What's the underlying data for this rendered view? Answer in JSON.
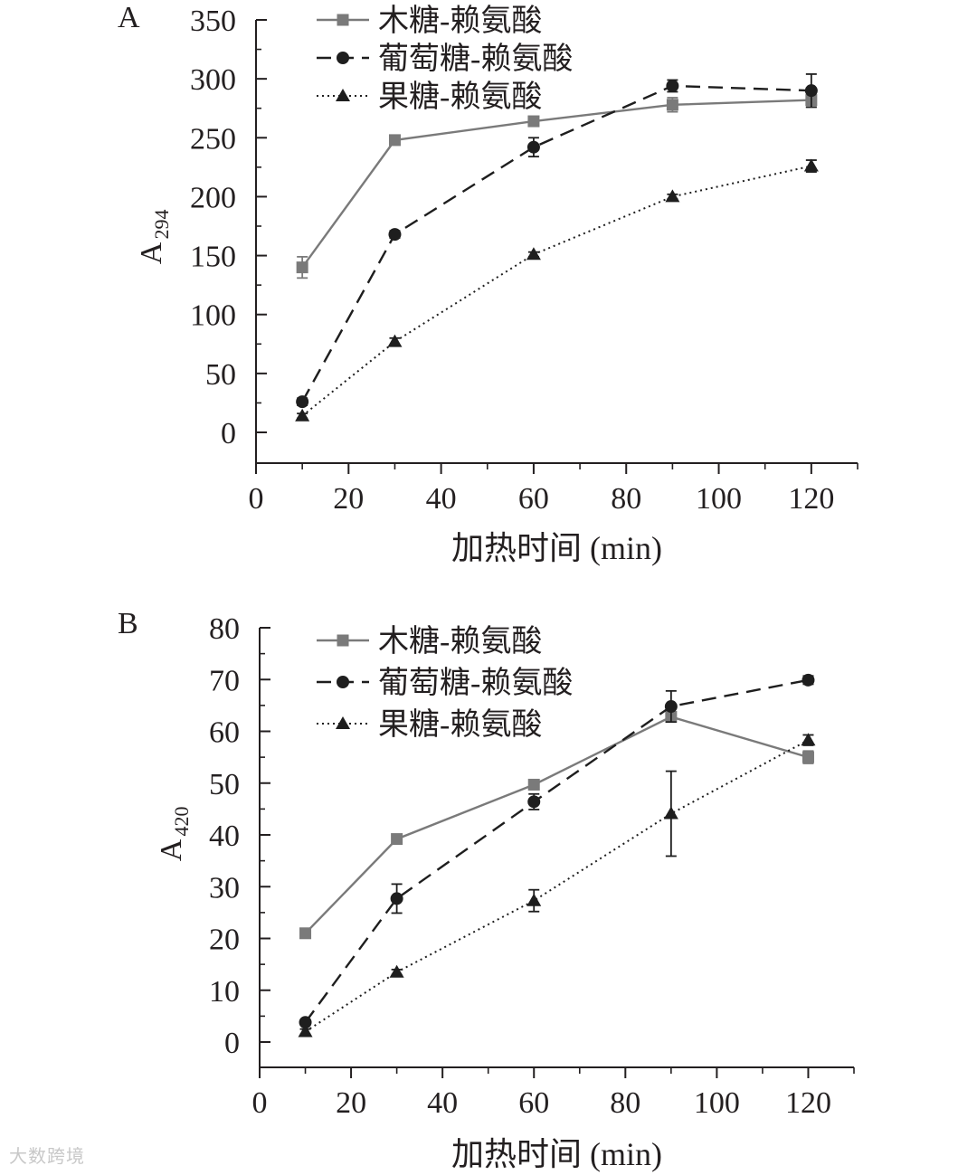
{
  "watermark": "大数跨境",
  "colors": {
    "xylose": "#7a7a7a",
    "glucose": "#1e1e1e",
    "fructose": "#1e1e1e",
    "axis": "#231f20"
  },
  "chart_data": [
    {
      "type": "line",
      "panel": "A",
      "xlabel": "加热时间 (min)",
      "ylabel_base": "A",
      "ylabel_sub": "294",
      "xlim": [
        0,
        130
      ],
      "ylim": [
        -25,
        350
      ],
      "xticks": [
        0,
        20,
        40,
        60,
        80,
        100,
        120
      ],
      "yticks": [
        0,
        50,
        100,
        150,
        200,
        250,
        300,
        350
      ],
      "legend_position": "top-left",
      "x": [
        10,
        30,
        60,
        90,
        120
      ],
      "series": [
        {
          "name": "木糖-赖氨酸",
          "style": "solid",
          "marker": "square",
          "color": "#7a7a7a",
          "values": [
            140,
            248,
            264,
            278,
            282
          ],
          "errors": [
            9,
            2,
            3,
            6,
            6
          ]
        },
        {
          "name": "葡萄糖-赖氨酸",
          "style": "dashed",
          "marker": "circle",
          "color": "#1e1e1e",
          "values": [
            26,
            168,
            242,
            294,
            290
          ],
          "errors": [
            3,
            3,
            8,
            5,
            14
          ]
        },
        {
          "name": "果糖-赖氨酸",
          "style": "dotted",
          "marker": "triangle",
          "color": "#1e1e1e",
          "values": [
            14,
            77,
            151,
            200,
            226
          ],
          "errors": [
            2,
            3,
            2,
            2,
            5
          ]
        }
      ]
    },
    {
      "type": "line",
      "panel": "B",
      "xlabel": "加热时间 (min)",
      "ylabel_base": "A",
      "ylabel_sub": "420",
      "xlim": [
        0,
        130
      ],
      "ylim": [
        -5,
        80
      ],
      "xticks": [
        0,
        20,
        40,
        60,
        80,
        100,
        120
      ],
      "yticks": [
        0,
        10,
        20,
        30,
        40,
        50,
        60,
        70,
        80
      ],
      "legend_position": "top-left",
      "x": [
        10,
        30,
        60,
        90,
        120
      ],
      "series": [
        {
          "name": "木糖-赖氨酸",
          "style": "solid",
          "marker": "square",
          "color": "#7a7a7a",
          "values": [
            21,
            39.2,
            49.7,
            62.8,
            55
          ],
          "errors": [
            0.5,
            0.5,
            0.5,
            0.8,
            1.2
          ]
        },
        {
          "name": "葡萄糖-赖氨酸",
          "style": "dashed",
          "marker": "circle",
          "color": "#1e1e1e",
          "values": [
            3.8,
            27.7,
            46.4,
            64.8,
            69.9
          ],
          "errors": [
            0.5,
            2.8,
            1.5,
            3,
            0.8
          ]
        },
        {
          "name": "果糖-赖氨酸",
          "style": "dotted",
          "marker": "triangle",
          "color": "#1e1e1e",
          "values": [
            2,
            13.5,
            27.3,
            44.1,
            58.3
          ],
          "errors": [
            0.5,
            0.5,
            2.1,
            8.2,
            1
          ]
        }
      ]
    }
  ]
}
